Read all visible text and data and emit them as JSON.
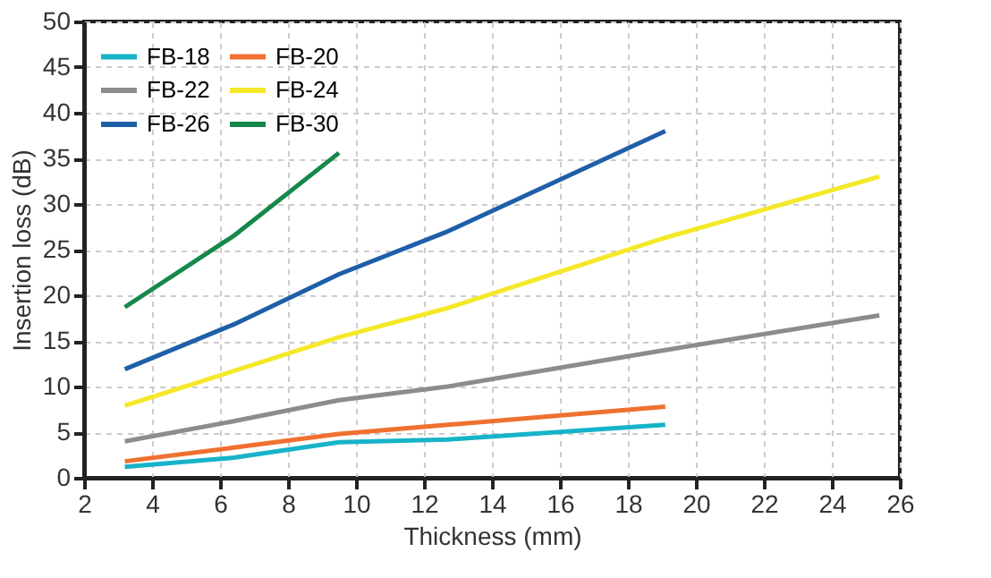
{
  "chart_data": {
    "type": "line",
    "xlabel": "Thickness (mm)",
    "ylabel": "Insertion loss (dB)",
    "xlim": [
      2,
      26
    ],
    "xticks": [
      2,
      4,
      6,
      8,
      10,
      12,
      14,
      16,
      18,
      20,
      22,
      24,
      26
    ],
    "ylim": [
      0,
      50
    ],
    "yticks": [
      0,
      5,
      10,
      15,
      20,
      25,
      30,
      35,
      40,
      45,
      50
    ],
    "grid": true,
    "legend": "top left",
    "marker": "none",
    "line_style": "solid",
    "series": [
      {
        "name": "FB-18",
        "color": "#17b3c8",
        "x": [
          3.2,
          6.4,
          9.5,
          12.7,
          19.1
        ],
        "values": [
          1.2,
          2.2,
          3.9,
          4.2,
          5.8
        ]
      },
      {
        "name": "FB-20",
        "color": "#f07030",
        "x": [
          3.2,
          6.4,
          9.5,
          12.7,
          19.1
        ],
        "values": [
          1.8,
          3.3,
          4.8,
          5.8,
          7.8
        ]
      },
      {
        "name": "FB-22",
        "color": "#8c8c8c",
        "x": [
          3.2,
          6.4,
          9.5,
          12.7,
          19.1,
          25.4
        ],
        "values": [
          4.0,
          6.2,
          8.5,
          10.0,
          14.0,
          17.8
        ]
      },
      {
        "name": "FB-24",
        "color": "#f5e829",
        "x": [
          3.2,
          6.4,
          9.5,
          12.7,
          19.1,
          25.4
        ],
        "values": [
          7.9,
          11.7,
          15.4,
          18.6,
          26.3,
          33.0
        ]
      },
      {
        "name": "FB-26",
        "color": "#1f5fa8",
        "x": [
          3.2,
          6.4,
          9.5,
          12.7,
          19.1
        ],
        "values": [
          11.9,
          16.8,
          22.3,
          27.0,
          38.0
        ]
      },
      {
        "name": "FB-30",
        "color": "#16884a",
        "x": [
          3.2,
          6.4,
          9.5
        ],
        "values": [
          18.7,
          26.5,
          35.6
        ]
      }
    ]
  }
}
